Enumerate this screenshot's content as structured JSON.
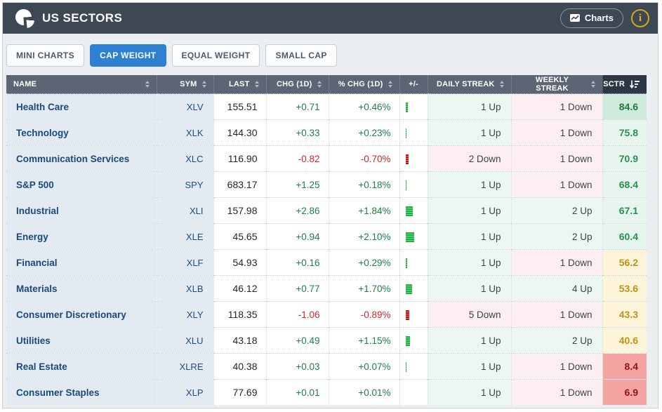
{
  "header": {
    "title": "US SECTORS",
    "charts_button_label": "Charts",
    "info_button_label": "i"
  },
  "tabs": [
    {
      "label": "MINI CHARTS",
      "active": false
    },
    {
      "label": "CAP WEIGHT",
      "active": true
    },
    {
      "label": "EQUAL WEIGHT",
      "active": false
    },
    {
      "label": "SMALL CAP",
      "active": false
    }
  ],
  "table": {
    "columns": [
      {
        "label": "NAME",
        "sort": "both",
        "align": "left"
      },
      {
        "label": "SYM",
        "sort": "both",
        "align": "right"
      },
      {
        "label": "LAST",
        "sort": "both",
        "align": "right"
      },
      {
        "label": "CHG (1D)",
        "sort": "both",
        "align": "right"
      },
      {
        "label": "% CHG (1D)",
        "sort": "both",
        "align": "right"
      },
      {
        "label": "+/-",
        "sort": "none",
        "align": "center"
      },
      {
        "label": "DAILY STREAK",
        "sort": "both",
        "align": "right"
      },
      {
        "label": "WEEKLY STREAK",
        "sort": "both",
        "align": "right"
      },
      {
        "label": "SCTR",
        "sort": "desc",
        "align": "right"
      }
    ],
    "rows": [
      {
        "name": "Health Care",
        "sym": "XLV",
        "last": "155.51",
        "chg": "+0.71",
        "pct": "+0.46%",
        "daily": "1 Up",
        "weekly": "1 Down",
        "sctr": 84.6
      },
      {
        "name": "Technology",
        "sym": "XLK",
        "last": "144.30",
        "chg": "+0.33",
        "pct": "+0.23%",
        "daily": "1 Up",
        "weekly": "1 Down",
        "sctr": 75.8
      },
      {
        "name": "Communication Services",
        "sym": "XLC",
        "last": "116.90",
        "chg": "-0.82",
        "pct": "-0.70%",
        "daily": "2 Down",
        "weekly": "1 Down",
        "sctr": 70.9
      },
      {
        "name": "S&P 500",
        "sym": "SPY",
        "last": "683.17",
        "chg": "+1.25",
        "pct": "+0.18%",
        "daily": "1 Up",
        "weekly": "1 Down",
        "sctr": 68.4
      },
      {
        "name": "Industrial",
        "sym": "XLI",
        "last": "157.98",
        "chg": "+2.86",
        "pct": "+1.84%",
        "daily": "1 Up",
        "weekly": "2 Up",
        "sctr": 67.1
      },
      {
        "name": "Energy",
        "sym": "XLE",
        "last": "45.65",
        "chg": "+0.94",
        "pct": "+2.10%",
        "daily": "1 Up",
        "weekly": "2 Up",
        "sctr": 60.4
      },
      {
        "name": "Financial",
        "sym": "XLF",
        "last": "54.93",
        "chg": "+0.16",
        "pct": "+0.29%",
        "daily": "1 Up",
        "weekly": "1 Down",
        "sctr": 56.2
      },
      {
        "name": "Materials",
        "sym": "XLB",
        "last": "46.12",
        "chg": "+0.77",
        "pct": "+1.70%",
        "daily": "1 Up",
        "weekly": "4 Up",
        "sctr": 53.6
      },
      {
        "name": "Consumer Discretionary",
        "sym": "XLY",
        "last": "118.35",
        "chg": "-1.06",
        "pct": "-0.89%",
        "daily": "5 Down",
        "weekly": "1 Down",
        "sctr": 43.3
      },
      {
        "name": "Utilities",
        "sym": "XLU",
        "last": "43.18",
        "chg": "+0.49",
        "pct": "+1.15%",
        "daily": "1 Up",
        "weekly": "2 Up",
        "sctr": 40.6
      },
      {
        "name": "Real Estate",
        "sym": "XLRE",
        "last": "40.38",
        "chg": "+0.03",
        "pct": "+0.07%",
        "daily": "1 Up",
        "weekly": "1 Down",
        "sctr": 8.4
      },
      {
        "name": "Consumer Staples",
        "sym": "XLP",
        "last": "77.69",
        "chg": "+0.01",
        "pct": "+0.01%",
        "daily": "1 Up",
        "weekly": "1 Down",
        "sctr": 6.9
      }
    ]
  },
  "colors": {
    "positive": "#1e8145",
    "negative": "#d22727",
    "bar_positive": "#16b13a",
    "bar_negative": "#c40f0f",
    "streak_up_bg": "#edf7f2",
    "streak_down_bg": "#fdeff1",
    "sctr_bands": [
      {
        "min": 80,
        "bg": "#cdeadb",
        "fg": "#1d7a43"
      },
      {
        "min": 60,
        "bg": "#e7f5ee",
        "fg": "#259152"
      },
      {
        "min": 40,
        "bg": "#fdf4d9",
        "fg": "#bb9417"
      },
      {
        "min": 0,
        "bg": "#f5a3a3",
        "fg": "#8e1414"
      }
    ]
  }
}
